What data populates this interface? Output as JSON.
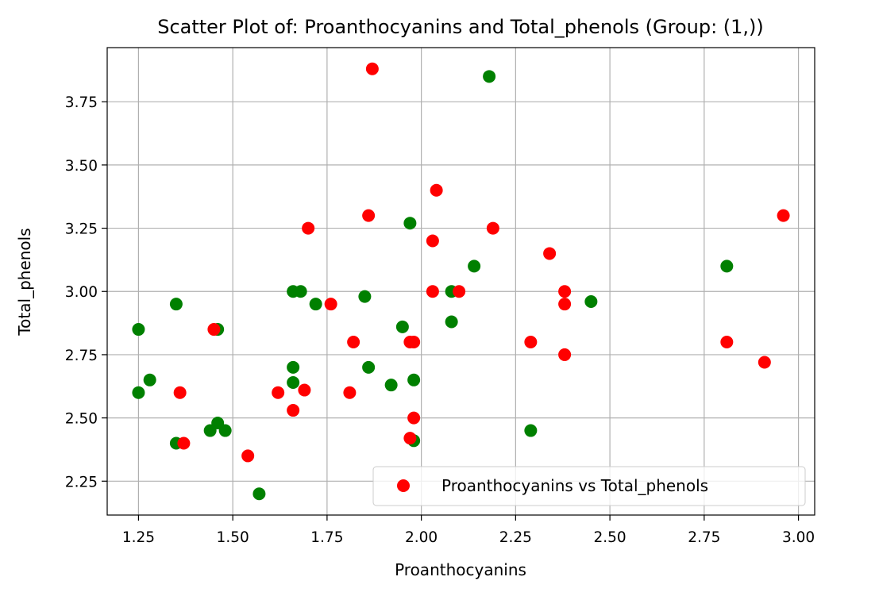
{
  "chart_data": {
    "type": "scatter",
    "title": "Scatter Plot of: Proanthocyanins and Total_phenols (Group: (1,))",
    "xlabel": "Proanthocyanins",
    "ylabel": "Total_phenols",
    "xlim": [
      1.167,
      3.043
    ],
    "ylim": [
      2.116,
      3.964
    ],
    "xticks": [
      1.25,
      1.5,
      1.75,
      2.0,
      2.25,
      2.5,
      2.75,
      3.0
    ],
    "xtick_labels": [
      "1.25",
      "1.50",
      "1.75",
      "2.00",
      "2.25",
      "2.50",
      "2.75",
      "3.00"
    ],
    "yticks": [
      2.25,
      2.5,
      2.75,
      3.0,
      3.25,
      3.5,
      3.75
    ],
    "ytick_labels": [
      "2.25",
      "2.50",
      "2.75",
      "3.00",
      "3.25",
      "3.50",
      "3.75"
    ],
    "grid": true,
    "legend_position": "lower right",
    "series": [
      {
        "color": "#008000",
        "points": [
          [
            1.25,
            2.85
          ],
          [
            1.25,
            2.6
          ],
          [
            1.28,
            2.65
          ],
          [
            1.35,
            2.95
          ],
          [
            1.35,
            2.4
          ],
          [
            1.44,
            2.45
          ],
          [
            1.46,
            2.85
          ],
          [
            1.46,
            2.48
          ],
          [
            1.48,
            2.45
          ],
          [
            1.57,
            2.2
          ],
          [
            1.66,
            3.0
          ],
          [
            1.66,
            2.7
          ],
          [
            1.66,
            2.64
          ],
          [
            1.68,
            3.0
          ],
          [
            1.72,
            2.95
          ],
          [
            1.85,
            2.98
          ],
          [
            1.86,
            2.7
          ],
          [
            1.92,
            2.63
          ],
          [
            1.95,
            2.86
          ],
          [
            1.97,
            3.27
          ],
          [
            1.98,
            2.65
          ],
          [
            1.98,
            2.41
          ],
          [
            2.08,
            3.0
          ],
          [
            2.08,
            2.88
          ],
          [
            2.14,
            3.1
          ],
          [
            2.18,
            3.85
          ],
          [
            2.29,
            2.45
          ],
          [
            2.45,
            2.96
          ],
          [
            2.81,
            3.1
          ]
        ]
      },
      {
        "name": "Proanthocyanins vs Total_phenols",
        "color": "#ff0000",
        "points": [
          [
            1.36,
            2.6
          ],
          [
            1.37,
            2.4
          ],
          [
            1.45,
            2.85
          ],
          [
            1.54,
            2.35
          ],
          [
            1.62,
            2.6
          ],
          [
            1.66,
            2.53
          ],
          [
            1.69,
            2.61
          ],
          [
            1.7,
            3.25
          ],
          [
            1.76,
            2.95
          ],
          [
            1.81,
            2.6
          ],
          [
            1.82,
            2.8
          ],
          [
            1.86,
            3.3
          ],
          [
            1.87,
            3.88
          ],
          [
            1.97,
            2.8
          ],
          [
            1.97,
            2.42
          ],
          [
            1.98,
            2.8
          ],
          [
            1.98,
            2.5
          ],
          [
            2.03,
            3.2
          ],
          [
            2.03,
            3.0
          ],
          [
            2.04,
            3.4
          ],
          [
            2.1,
            3.0
          ],
          [
            2.19,
            3.25
          ],
          [
            2.29,
            2.8
          ],
          [
            2.34,
            3.15
          ],
          [
            2.38,
            3.0
          ],
          [
            2.38,
            2.95
          ],
          [
            2.38,
            2.75
          ],
          [
            2.81,
            2.8
          ],
          [
            2.91,
            2.72
          ],
          [
            2.96,
            3.3
          ]
        ]
      }
    ]
  }
}
